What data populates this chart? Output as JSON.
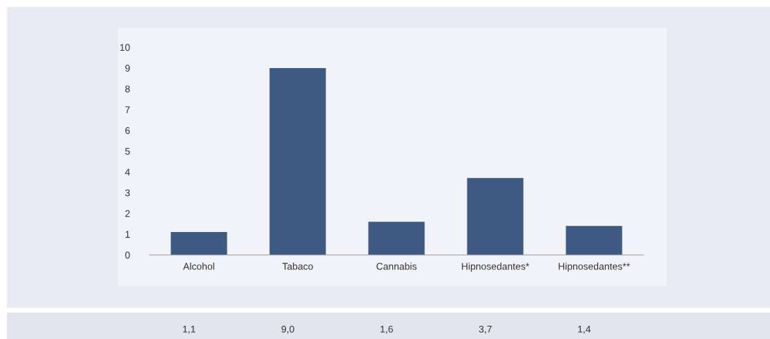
{
  "chart_data": {
    "type": "bar",
    "categories": [
      "Alcohol",
      "Tabaco",
      "Cannabis",
      "Hipnosedantes*",
      "Hipnosedantes**"
    ],
    "values": [
      1.1,
      9.0,
      1.6,
      3.7,
      1.4
    ],
    "value_labels": [
      "1,1",
      "9,0",
      "1,6",
      "3,7",
      "1,4"
    ],
    "color": "#3c5a82",
    "ylim": [
      0,
      10
    ],
    "yticks": [
      0,
      1,
      2,
      3,
      4,
      5,
      6,
      7,
      8,
      9,
      10
    ],
    "grid": false
  }
}
